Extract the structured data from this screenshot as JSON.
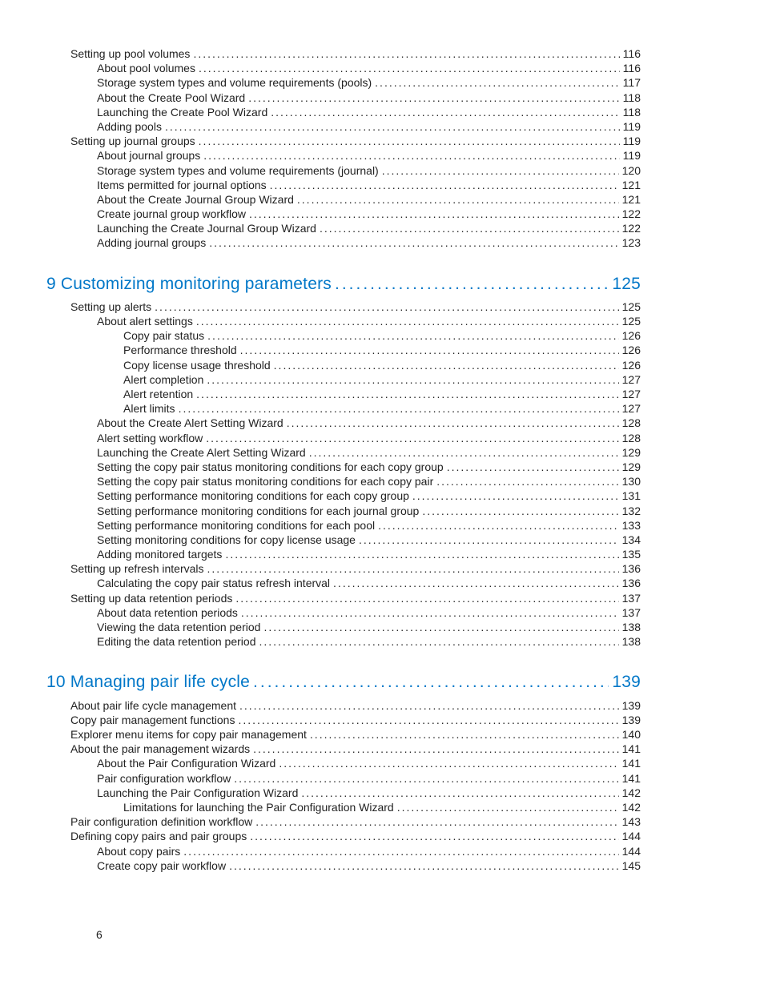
{
  "page_number": "6",
  "colors": {
    "chapter": "#0077c8",
    "text": "#222222",
    "background": "#ffffff"
  },
  "typography": {
    "body_fontsize_pt": 11,
    "chapter_fontsize_pt": 16,
    "font_family": "Futura / Century Gothic"
  },
  "toc": [
    {
      "level": 1,
      "label": "Setting up pool volumes",
      "page": "116"
    },
    {
      "level": 2,
      "label": "About pool volumes",
      "page": "116"
    },
    {
      "level": 2,
      "label": "Storage system types and volume requirements (pools)",
      "page": "117"
    },
    {
      "level": 2,
      "label": "About the Create Pool Wizard",
      "page": "118"
    },
    {
      "level": 2,
      "label": "Launching the Create Pool Wizard",
      "page": "118"
    },
    {
      "level": 2,
      "label": "Adding pools",
      "page": "119"
    },
    {
      "level": 1,
      "label": "Setting up journal groups",
      "page": "119"
    },
    {
      "level": 2,
      "label": "About journal groups",
      "page": "119"
    },
    {
      "level": 2,
      "label": "Storage system types and volume requirements (journal)",
      "page": "120"
    },
    {
      "level": 2,
      "label": "Items permitted for journal options",
      "page": "121"
    },
    {
      "level": 2,
      "label": "About the Create Journal Group Wizard",
      "page": "121"
    },
    {
      "level": 2,
      "label": "Create journal group workflow",
      "page": "122"
    },
    {
      "level": 2,
      "label": "Launching the Create Journal Group Wizard",
      "page": "122"
    },
    {
      "level": 2,
      "label": "Adding journal groups",
      "page": "123"
    },
    {
      "level": 0,
      "label": "9 Customizing monitoring parameters",
      "page": "125"
    },
    {
      "level": 1,
      "label": "Setting up alerts",
      "page": "125"
    },
    {
      "level": 2,
      "label": "About alert settings",
      "page": "125"
    },
    {
      "level": 3,
      "label": "Copy pair status",
      "page": "126"
    },
    {
      "level": 3,
      "label": "Performance threshold",
      "page": "126"
    },
    {
      "level": 3,
      "label": "Copy license usage threshold",
      "page": "126"
    },
    {
      "level": 3,
      "label": "Alert completion",
      "page": "127"
    },
    {
      "level": 3,
      "label": "Alert retention",
      "page": "127"
    },
    {
      "level": 3,
      "label": "Alert limits",
      "page": "127"
    },
    {
      "level": 2,
      "label": "About the Create Alert Setting Wizard",
      "page": "128"
    },
    {
      "level": 2,
      "label": "Alert setting workflow",
      "page": "128"
    },
    {
      "level": 2,
      "label": "Launching the Create Alert Setting Wizard",
      "page": "129"
    },
    {
      "level": 2,
      "label": "Setting the copy pair status monitoring conditions for each copy group",
      "page": "129"
    },
    {
      "level": 2,
      "label": "Setting the copy pair status monitoring conditions for each copy pair",
      "page": "130"
    },
    {
      "level": 2,
      "label": "Setting performance monitoring conditions for each copy group",
      "page": "131"
    },
    {
      "level": 2,
      "label": "Setting performance monitoring conditions for each journal group",
      "page": "132"
    },
    {
      "level": 2,
      "label": "Setting performance monitoring conditions for each pool",
      "page": "133"
    },
    {
      "level": 2,
      "label": "Setting monitoring conditions for copy license usage",
      "page": "134"
    },
    {
      "level": 2,
      "label": "Adding monitored targets",
      "page": "135"
    },
    {
      "level": 1,
      "label": "Setting up refresh intervals",
      "page": "136"
    },
    {
      "level": 2,
      "label": "Calculating the copy pair status refresh interval",
      "page": "136"
    },
    {
      "level": 1,
      "label": "Setting up data retention periods",
      "page": "137"
    },
    {
      "level": 2,
      "label": "About data retention periods",
      "page": "137"
    },
    {
      "level": 2,
      "label": "Viewing the data retention period",
      "page": "138"
    },
    {
      "level": 2,
      "label": "Editing the data retention period",
      "page": "138"
    },
    {
      "level": 0,
      "label": "10 Managing pair life cycle",
      "page": "139"
    },
    {
      "level": 1,
      "label": "About pair life cycle management",
      "page": "139"
    },
    {
      "level": 1,
      "label": "Copy pair management functions",
      "page": "139"
    },
    {
      "level": 1,
      "label": "Explorer menu items for copy pair management",
      "page": "140"
    },
    {
      "level": 1,
      "label": "About the pair management wizards",
      "page": "141"
    },
    {
      "level": 2,
      "label": "About the Pair Configuration Wizard",
      "page": "141"
    },
    {
      "level": 2,
      "label": "Pair configuration workflow",
      "page": "141"
    },
    {
      "level": 2,
      "label": "Launching the Pair Configuration Wizard",
      "page": "142"
    },
    {
      "level": 3,
      "label": "Limitations for launching the Pair Configuration Wizard",
      "page": "142"
    },
    {
      "level": 1,
      "label": "Pair configuration definition workflow",
      "page": "143"
    },
    {
      "level": 1,
      "label": "Defining copy pairs and pair groups",
      "page": "144"
    },
    {
      "level": 2,
      "label": "About copy pairs",
      "page": "144"
    },
    {
      "level": 2,
      "label": "Create copy pair workflow",
      "page": "145"
    }
  ]
}
